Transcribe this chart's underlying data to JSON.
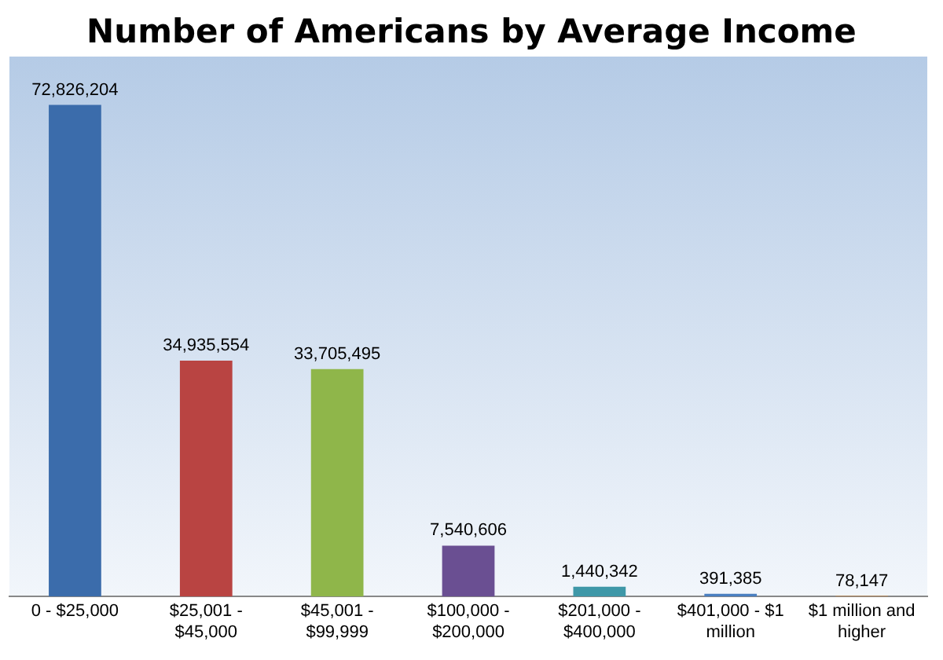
{
  "chart_data": {
    "type": "bar",
    "title": "Number of Americans by Average Income",
    "categories": [
      "0 - $25,000",
      "$25,001 - $45,000",
      "$45,001 - $99,999",
      "$100,000 - $200,000",
      "$201,000 - $400,000",
      "$401,000 - $1 million",
      "$1 million and higher"
    ],
    "values": [
      72826204,
      34935554,
      33705495,
      7540606,
      1440342,
      391385,
      78147
    ],
    "colors": [
      "#3b6cab",
      "#b94442",
      "#8fb64a",
      "#6a4f92",
      "#3f98a8",
      "#4a7fc0",
      "#d8893a"
    ],
    "value_labels": [
      "72,826,204",
      "34,935,554",
      "33,705,495",
      "7,540,606",
      "1,440,342",
      "391,385",
      "78,147"
    ],
    "grid": false,
    "legend": false
  }
}
